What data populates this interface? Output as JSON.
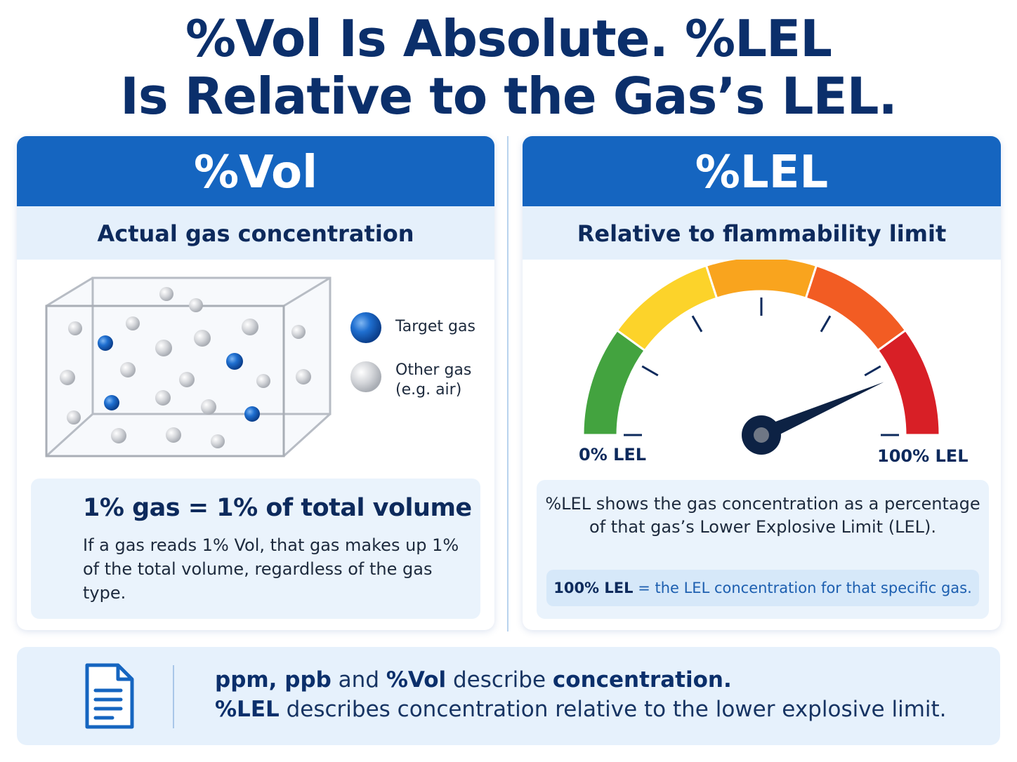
{
  "title": {
    "line1": "%Vol Is Absolute. %LEL",
    "line2": "Is Relative to the Gas’s LEL."
  },
  "left_panel": {
    "header": "%Vol",
    "subtitle": "Actual gas concentration",
    "legend": [
      {
        "label": "Target gas",
        "icon": "blue-sphere-icon"
      },
      {
        "label_line1": "Other gas",
        "label_line2": "(e.g. air)",
        "icon": "gray-sphere-icon"
      }
    ],
    "info_heading": "1% gas = 1% of total volume",
    "info_body": "If a gas reads 1% Vol, that gas makes up 1% of the total volume, regardless of the gas type."
  },
  "right_panel": {
    "header": "%LEL",
    "subtitle": "Relative to flammability limit",
    "gauge": {
      "min_label": "0% LEL",
      "max_label": "100% LEL",
      "needle_fraction": 0.87,
      "zone_colors": [
        "#43a33f",
        "#fcd32a",
        "#f9a41e",
        "#f25c23",
        "#d81f26"
      ]
    },
    "info_body": "%LEL shows the gas concentration as a percentage of that gas’s Lower Explosive Limit (LEL).",
    "note_bold": "100% LEL",
    "note_rest": " = the LEL concentration for that specific gas."
  },
  "footer": {
    "icon": "document-icon",
    "line1_a": "ppm, ppb",
    "line1_b": " and ",
    "line1_c": "%Vol",
    "line1_d": " describe ",
    "line1_e": "concentration.",
    "line2_a": "%LEL",
    "line2_b": " describes concentration relative to the lower explosive limit."
  },
  "colors": {
    "primary": "#1565c0",
    "navy": "#0b2f6b",
    "light": "#e5f0fb"
  }
}
